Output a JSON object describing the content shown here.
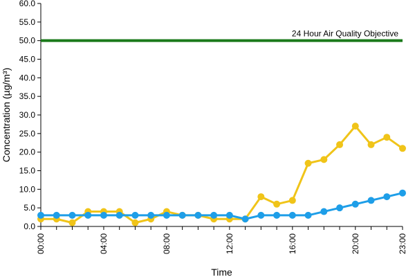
{
  "chart_data": {
    "type": "line",
    "xlabel": "Time",
    "ylabel": "Concentration (µg/m³)",
    "ylim": [
      0,
      60
    ],
    "y_ticks": [
      "0.0",
      "5.0",
      "10.0",
      "15.0",
      "20.0",
      "25.0",
      "30.0",
      "35.0",
      "40.0",
      "45.0",
      "50.0",
      "55.0",
      "60.0"
    ],
    "x_tick_labels": [
      "00:00",
      "04:00",
      "08:00",
      "12:00",
      "16:00",
      "20:00",
      "23:00"
    ],
    "x_tick_hours": [
      0,
      4,
      8,
      12,
      16,
      20,
      23
    ],
    "x_hours": [
      0,
      1,
      2,
      3,
      4,
      5,
      6,
      7,
      8,
      9,
      10,
      11,
      12,
      13,
      14,
      15,
      16,
      17,
      18,
      19,
      20,
      21,
      22,
      23
    ],
    "series": [
      {
        "color": "#f0c419",
        "values": [
          2,
          2,
          1,
          4,
          4,
          4,
          1,
          2,
          4,
          3,
          3,
          2,
          2,
          2,
          8,
          6,
          7,
          17,
          18,
          22,
          27,
          22,
          24,
          21
        ]
      },
      {
        "color": "#1e9ee8",
        "values": [
          3,
          3,
          3,
          3,
          3,
          3,
          3,
          3,
          3,
          3,
          3,
          3,
          3,
          2,
          3,
          3,
          3,
          3,
          4,
          5,
          6,
          7,
          8,
          9
        ]
      }
    ],
    "reference_line": {
      "value": 50,
      "label": "24 Hour Air Quality Objective",
      "color": "#1a7a1a"
    },
    "grid": false
  }
}
